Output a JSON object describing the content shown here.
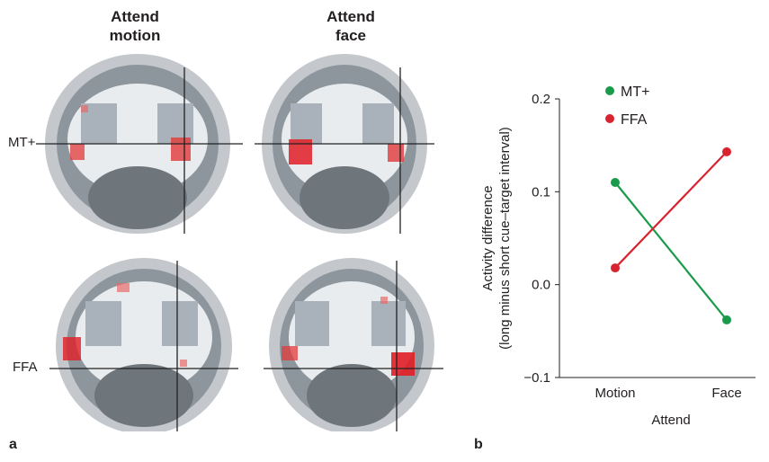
{
  "panel_a": {
    "columns": [
      "Attend\nmotion",
      "Attend\nface"
    ],
    "rows": [
      "MT+",
      "FFA"
    ],
    "letter": "a"
  },
  "panel_b": {
    "letter": "b"
  },
  "chart_data": {
    "type": "line",
    "categories": [
      "Motion",
      "Face"
    ],
    "xlabel": "Attend",
    "ylabel": [
      "Activity difference",
      "(long minus short cue–target interval)"
    ],
    "ylim": [
      -0.1,
      0.2
    ],
    "yticks": [
      -0.1,
      0.0,
      0.1,
      0.2
    ],
    "ytick_labels": [
      "−0.1",
      "0.0",
      "0.1",
      "0.2"
    ],
    "grid": false,
    "legend_position": "top-left",
    "series": [
      {
        "name": "MT+",
        "color": "#1a9b4b",
        "values": [
          0.11,
          -0.038
        ]
      },
      {
        "name": "FFA",
        "color": "#d9232e",
        "values": [
          0.018,
          0.143
        ]
      }
    ]
  }
}
